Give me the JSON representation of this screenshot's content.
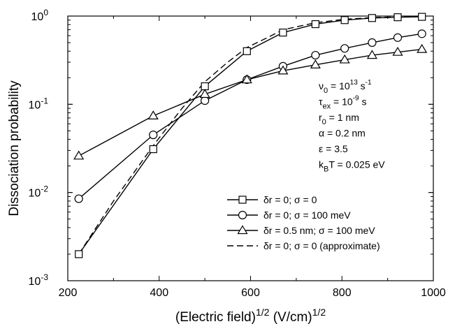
{
  "chart_data": {
    "type": "line",
    "xlabel": "(Electric field)",
    "xlabel_sup1": "1/2",
    "xlabel_units": "(V/cm)",
    "xlabel_sup2": "1/2",
    "ylabel": "Dissociation probability",
    "xlim": [
      200,
      1000
    ],
    "ylim": [
      0.001,
      1
    ],
    "y_scale": "log",
    "x_ticks": [
      200,
      400,
      600,
      800,
      1000
    ],
    "y_ticks": [
      {
        "value": 0.001,
        "base": "10",
        "exp": "-3"
      },
      {
        "value": 0.01,
        "base": "10",
        "exp": "-2"
      },
      {
        "value": 0.1,
        "base": "10",
        "exp": "-1"
      },
      {
        "value": 1,
        "base": "10",
        "exp": "0"
      }
    ],
    "grid": false,
    "legend_position": "lower-right",
    "annotations": [
      {
        "pre": "ν",
        "sub": "0",
        "mid": " = 10",
        "sup": "13",
        "post": " s",
        "sup2": "-1"
      },
      {
        "pre": "τ",
        "sub": "ex",
        "mid": " = 10",
        "sup": "-9",
        "post": " s",
        "sup2": ""
      },
      {
        "pre": "r",
        "sub": "0",
        "mid": " = 1 nm",
        "sup": "",
        "post": "",
        "sup2": ""
      },
      {
        "pre": "α = 0.2 nm",
        "sub": "",
        "mid": "",
        "sup": "",
        "post": "",
        "sup2": ""
      },
      {
        "pre": "ε = 3.5",
        "sub": "",
        "mid": "",
        "sup": "",
        "post": "",
        "sup2": ""
      },
      {
        "pre": "k",
        "sub": "B",
        "mid": "T = 0.025 eV",
        "sup": "",
        "post": "",
        "sup2": ""
      }
    ],
    "series": [
      {
        "name": "δr = 0; σ = 0",
        "marker": "square",
        "dash": "solid",
        "x": [
          224,
          387,
          500,
          592,
          671,
          742,
          806,
          866,
          922,
          975
        ],
        "y": [
          0.002,
          0.031,
          0.16,
          0.4,
          0.65,
          0.81,
          0.9,
          0.95,
          0.97,
          0.98
        ]
      },
      {
        "name": "δr = 0; σ = 100 meV",
        "marker": "circle",
        "dash": "solid",
        "x": [
          224,
          387,
          500,
          592,
          671,
          742,
          806,
          866,
          922,
          975
        ],
        "y": [
          0.0085,
          0.045,
          0.11,
          0.19,
          0.27,
          0.36,
          0.43,
          0.5,
          0.57,
          0.63
        ]
      },
      {
        "name": "δr = 0.5 nm; σ = 100 meV",
        "marker": "triangle",
        "dash": "solid",
        "x": [
          224,
          387,
          500,
          592,
          671,
          742,
          806,
          866,
          922,
          975
        ],
        "y": [
          0.026,
          0.074,
          0.13,
          0.19,
          0.24,
          0.28,
          0.32,
          0.36,
          0.39,
          0.42
        ]
      },
      {
        "name": "δr = 0; σ = 0 (approximate)",
        "marker": "none",
        "dash": "dashed",
        "x": [
          224,
          300,
          387,
          450,
          500,
          550,
          592,
          640,
          671,
          742,
          806,
          866,
          922,
          975
        ],
        "y": [
          0.002,
          0.008,
          0.034,
          0.09,
          0.18,
          0.3,
          0.44,
          0.58,
          0.7,
          0.84,
          0.92,
          0.96,
          0.98,
          0.99
        ]
      }
    ]
  }
}
